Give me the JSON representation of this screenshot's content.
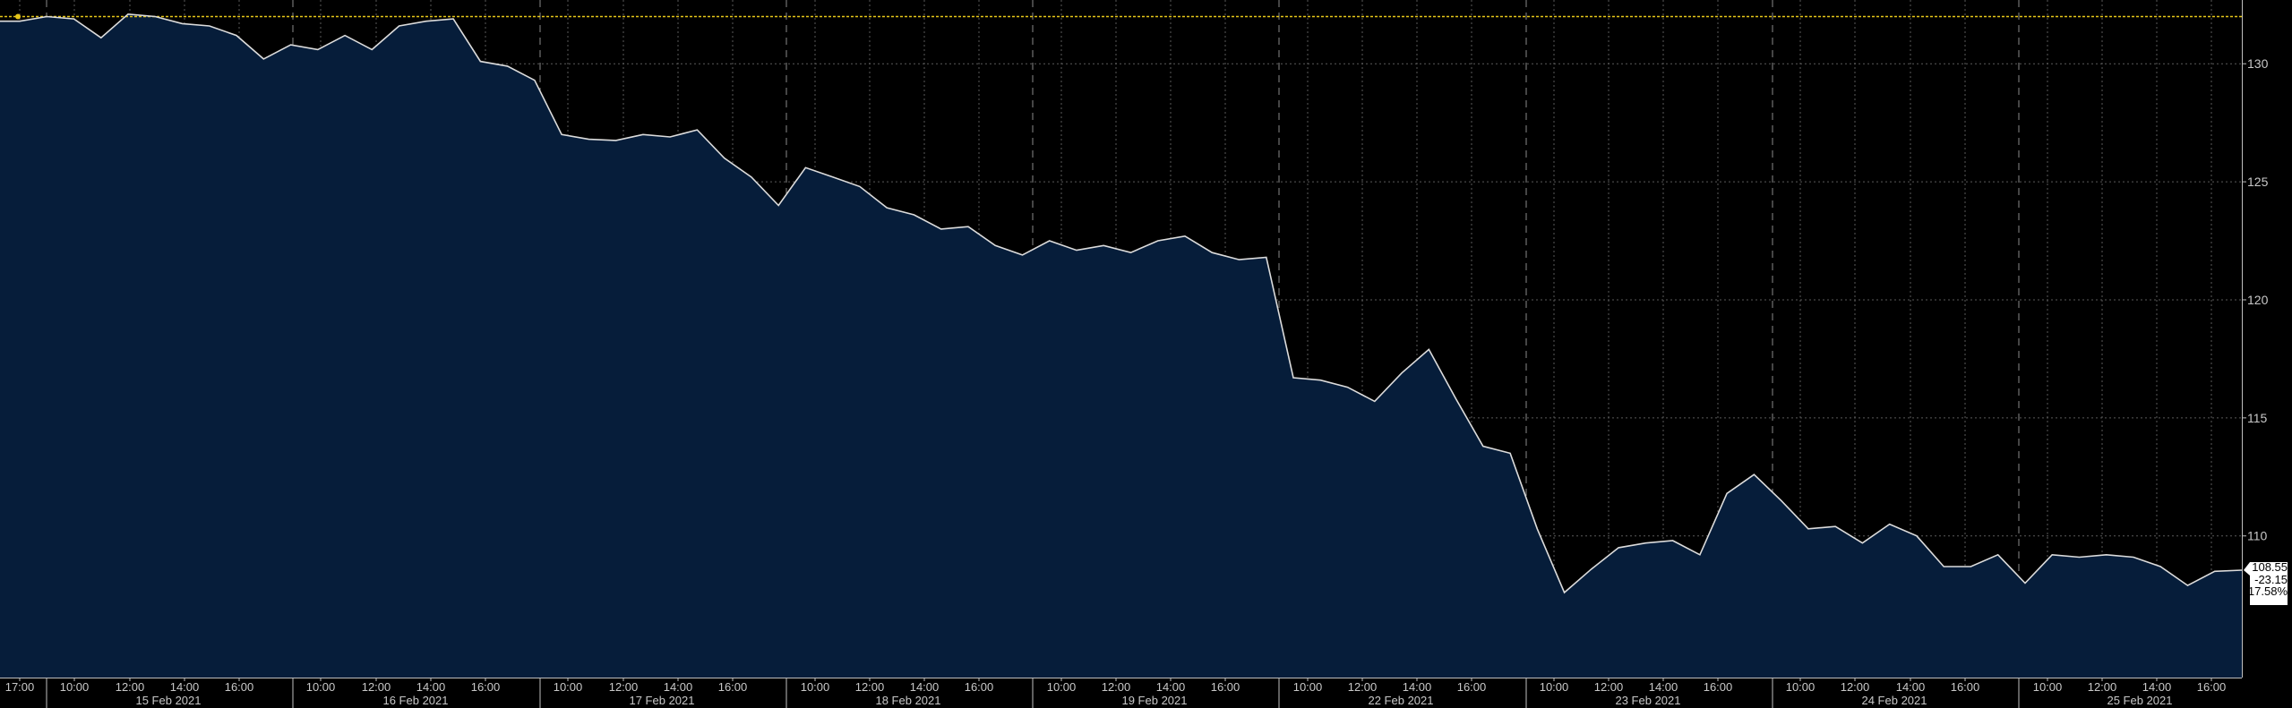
{
  "chart_data": {
    "type": "area",
    "ylim": [
      104,
      132.7
    ],
    "yticks": [
      110,
      115,
      120,
      125,
      130
    ],
    "reference_line": 132.0,
    "grid": true,
    "colors": {
      "fill": "#061d3a",
      "line": "#dcdcdc",
      "reference": "#e6c619",
      "background": "#000000"
    },
    "time_labels": [
      "17:00",
      "10:00",
      "12:00",
      "14:00",
      "16:00",
      "10:00",
      "12:00",
      "14:00",
      "16:00",
      "10:00",
      "12:00",
      "14:00",
      "16:00",
      "10:00",
      "12:00",
      "14:00",
      "16:00",
      "10:00",
      "12:00",
      "14:00",
      "16:00",
      "10:00",
      "12:00",
      "14:00",
      "16:00",
      "10:00",
      "12:00",
      "14:00",
      "16:00",
      "10:00",
      "12:00",
      "14:00",
      "16:00",
      "10:00",
      "12:00",
      "14:00",
      "16:00"
    ],
    "day_labels": [
      "15 Feb 2021",
      "16 Feb 2021",
      "17 Feb 2021",
      "18 Feb 2021",
      "19 Feb 2021",
      "22 Feb 2021",
      "23 Feb 2021",
      "24 Feb 2021",
      "25 Feb 2021"
    ],
    "values": [
      131.8,
      132.0,
      131.9,
      131.1,
      132.1,
      132.0,
      131.7,
      131.6,
      131.2,
      130.2,
      130.8,
      130.6,
      131.2,
      130.6,
      131.6,
      131.8,
      131.9,
      130.1,
      129.9,
      129.3,
      127.0,
      126.8,
      126.75,
      127.0,
      126.9,
      127.2,
      126.0,
      125.2,
      124.0,
      125.6,
      125.2,
      124.8,
      123.9,
      123.6,
      123.0,
      123.1,
      122.3,
      121.9,
      122.5,
      122.1,
      122.3,
      122.0,
      122.5,
      122.7,
      122.0,
      121.7,
      121.8,
      116.7,
      116.6,
      116.3,
      115.7,
      116.9,
      117.9,
      115.8,
      113.8,
      113.5,
      110.3,
      107.6,
      108.6,
      109.5,
      109.7,
      109.8,
      109.2,
      111.8,
      112.6,
      111.5,
      110.3,
      110.4,
      109.7,
      110.5,
      110.0,
      108.7,
      108.7,
      109.2,
      108.0,
      109.2,
      109.1,
      109.2,
      109.1,
      108.7,
      107.9,
      108.5,
      108.55
    ],
    "last": {
      "value": "108.55",
      "change": "-23.15",
      "pct": "-17.58%"
    }
  }
}
